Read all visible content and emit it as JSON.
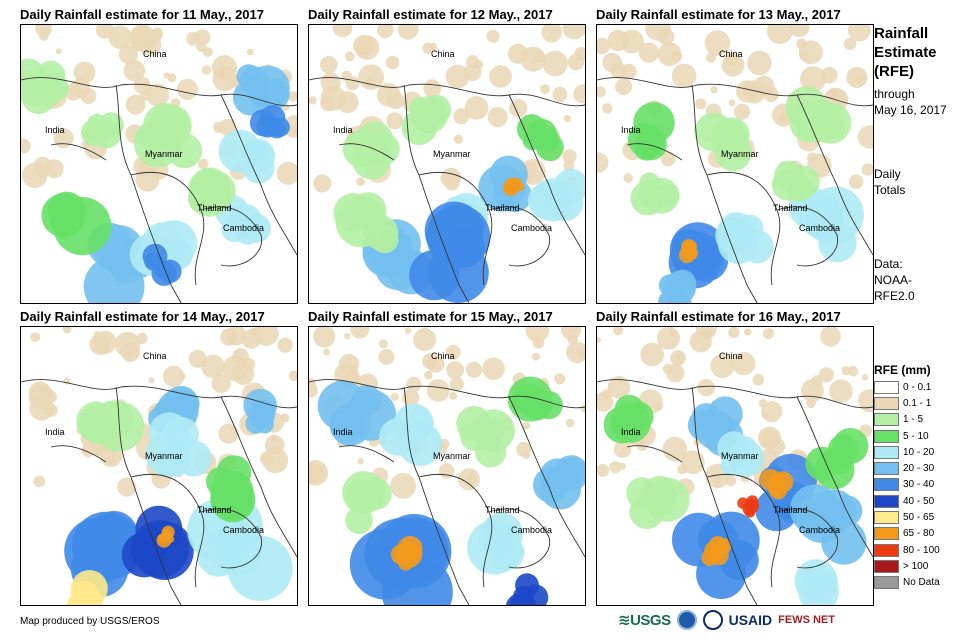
{
  "panels": [
    {
      "title": "Daily Rainfall estimate for 11 May., 2017"
    },
    {
      "title": "Daily Rainfall estimate for 12 May., 2017"
    },
    {
      "title": "Daily Rainfall estimate for 13 May., 2017"
    },
    {
      "title": "Daily Rainfall estimate for 14 May., 2017"
    },
    {
      "title": "Daily Rainfall estimate for 15 May., 2017"
    },
    {
      "title": "Daily Rainfall estimate for 16 May., 2017"
    }
  ],
  "map_labels": {
    "china": "China",
    "india": "India",
    "myanmar": "Myanmar",
    "thailand": "Thailand",
    "cambodia": "Cambodia"
  },
  "side": {
    "title_line1": "Rainfall",
    "title_line2": "Estimate",
    "title_line3": "(RFE)",
    "through": "through",
    "date": "May 16, 2017",
    "daily": "Daily",
    "totals": "Totals",
    "data_label": "Data:",
    "data_source1": "NOAA-",
    "data_source2": "RFE2.0"
  },
  "legend": {
    "title": "RFE (mm)",
    "items": [
      {
        "label": "0 - 0.1",
        "color": "#ffffff"
      },
      {
        "label": "0.1 - 1",
        "color": "#ead7b5"
      },
      {
        "label": "1 - 5",
        "color": "#b3f0a4"
      },
      {
        "label": "5 - 10",
        "color": "#67e067"
      },
      {
        "label": "10 - 20",
        "color": "#aeeaf5"
      },
      {
        "label": "20 - 30",
        "color": "#73c0f0"
      },
      {
        "label": "30 - 40",
        "color": "#3f8ae8"
      },
      {
        "label": "40 - 50",
        "color": "#1c48c8"
      },
      {
        "label": "50 - 65",
        "color": "#ffe98a"
      },
      {
        "label": "65 - 80",
        "color": "#f39a1d"
      },
      {
        "label": "80 - 100",
        "color": "#ee3a12"
      },
      {
        "label": "> 100",
        "color": "#a8181a"
      },
      {
        "label": "No Data",
        "color": "#9a9a9a"
      }
    ]
  },
  "credit": "Map produced by USGS/EROS",
  "logos": {
    "usgs": "≋USGS",
    "usaid": "USAID",
    "fews": "FEWS NET"
  }
}
